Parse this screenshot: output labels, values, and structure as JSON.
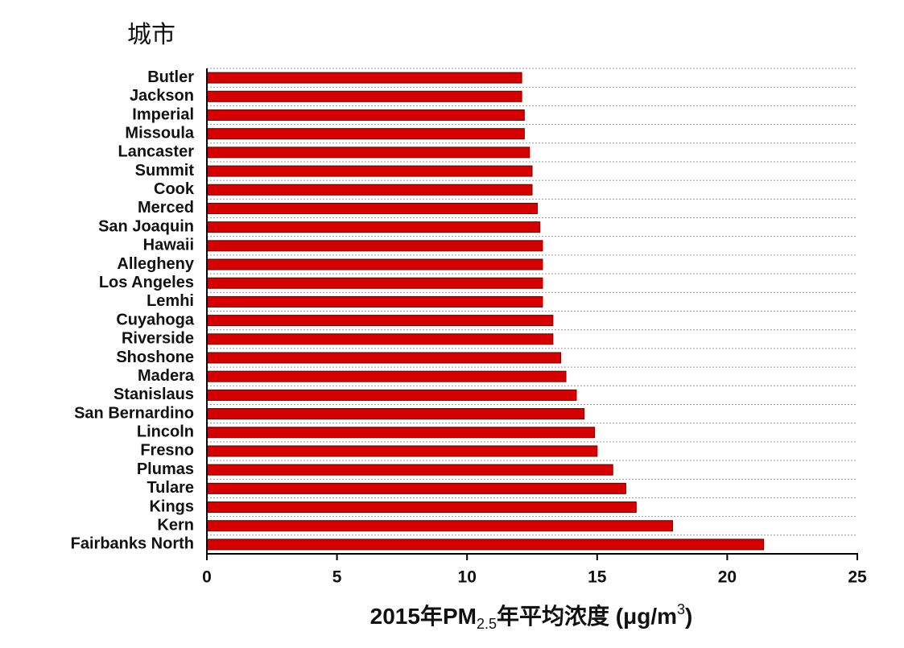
{
  "chart_data": {
    "type": "hbar",
    "y_title": "城市",
    "x_label_parts": [
      "2015年PM",
      "2.5",
      "年平均浓度 (μg/m",
      "3",
      ")"
    ],
    "categories": [
      "Butler",
      "Jackson",
      "Imperial",
      "Missoula",
      "Lancaster",
      "Summit",
      "Cook",
      "Merced",
      "San Joaquin",
      "Hawaii",
      "Allegheny",
      "Los Angeles",
      "Lemhi",
      "Cuyahoga",
      "Riverside",
      "Shoshone",
      "Madera",
      "Stanislaus",
      "San Bernardino",
      "Lincoln",
      "Fresno",
      "Plumas",
      "Tulare",
      "Kings",
      "Kern",
      "Fairbanks North"
    ],
    "values": [
      12.1,
      12.1,
      12.2,
      12.2,
      12.4,
      12.5,
      12.5,
      12.7,
      12.8,
      12.9,
      12.9,
      12.9,
      12.9,
      13.3,
      13.3,
      13.6,
      13.8,
      14.2,
      14.5,
      14.9,
      15.0,
      15.6,
      16.1,
      16.5,
      17.9,
      21.4
    ],
    "color": "#d40000",
    "xlim": [
      0,
      25
    ],
    "xticks": [
      0,
      5,
      10,
      15,
      20,
      25
    ],
    "grid": true
  }
}
